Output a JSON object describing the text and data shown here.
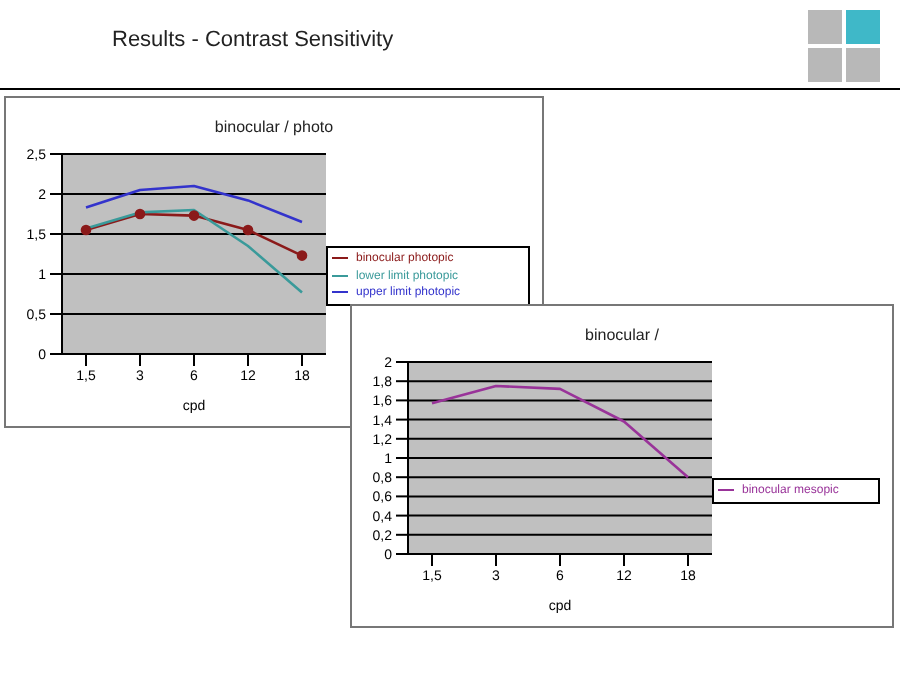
{
  "chart_data": [
    {
      "type": "line",
      "title": "binocular / photo",
      "annotations": [
        "Results - Contrast Sensitivity"
      ],
      "xlabel": "cpd",
      "categories": [
        "1,5",
        "3",
        "6",
        "12",
        "18"
      ],
      "series": [
        {
          "name": "binocular photopic",
          "color": "#8b1a1a",
          "marker": "circle",
          "values": [
            1.55,
            1.75,
            1.73,
            1.55,
            1.23
          ]
        },
        {
          "name": "lower limit photopic",
          "color": "#3a9a9a",
          "values": [
            1.57,
            1.77,
            1.8,
            1.35,
            0.77
          ]
        },
        {
          "name": "upper limit photopic",
          "color": "#3333cc",
          "values": [
            1.83,
            2.05,
            2.1,
            1.92,
            1.65
          ]
        }
      ],
      "ylim": [
        0,
        2.5
      ],
      "yticks": [
        0,
        {
          "value": 0.5,
          "label": "0,5"
        },
        1,
        {
          "value": 1.5,
          "label": "1,5"
        },
        2,
        {
          "value": 2.5,
          "label": "2,5"
        }
      ],
      "grid": "y",
      "legend": "right"
    },
    {
      "type": "line",
      "title": "binocular /",
      "xlabel": "cpd",
      "categories": [
        "1,5",
        "3",
        "6",
        "12",
        "18"
      ],
      "series": [
        {
          "name": "binocular mesopic",
          "color": "#993399",
          "values": [
            1.57,
            1.75,
            1.72,
            1.38,
            0.8
          ]
        }
      ],
      "ylim": [
        0,
        2
      ],
      "yticks": [
        0,
        {
          "value": 0.2,
          "label": "0,2"
        },
        {
          "value": 0.4,
          "label": "0,4"
        },
        {
          "value": 0.6,
          "label": "0,6"
        },
        {
          "value": 0.8,
          "label": "0,8"
        },
        1,
        {
          "value": 1.2,
          "label": "1,2"
        },
        {
          "value": 1.4,
          "label": "1,4"
        },
        {
          "value": 1.6,
          "label": "1,6"
        },
        {
          "value": 1.8,
          "label": "1,8"
        },
        2
      ],
      "grid": "y",
      "legend": "right"
    }
  ]
}
